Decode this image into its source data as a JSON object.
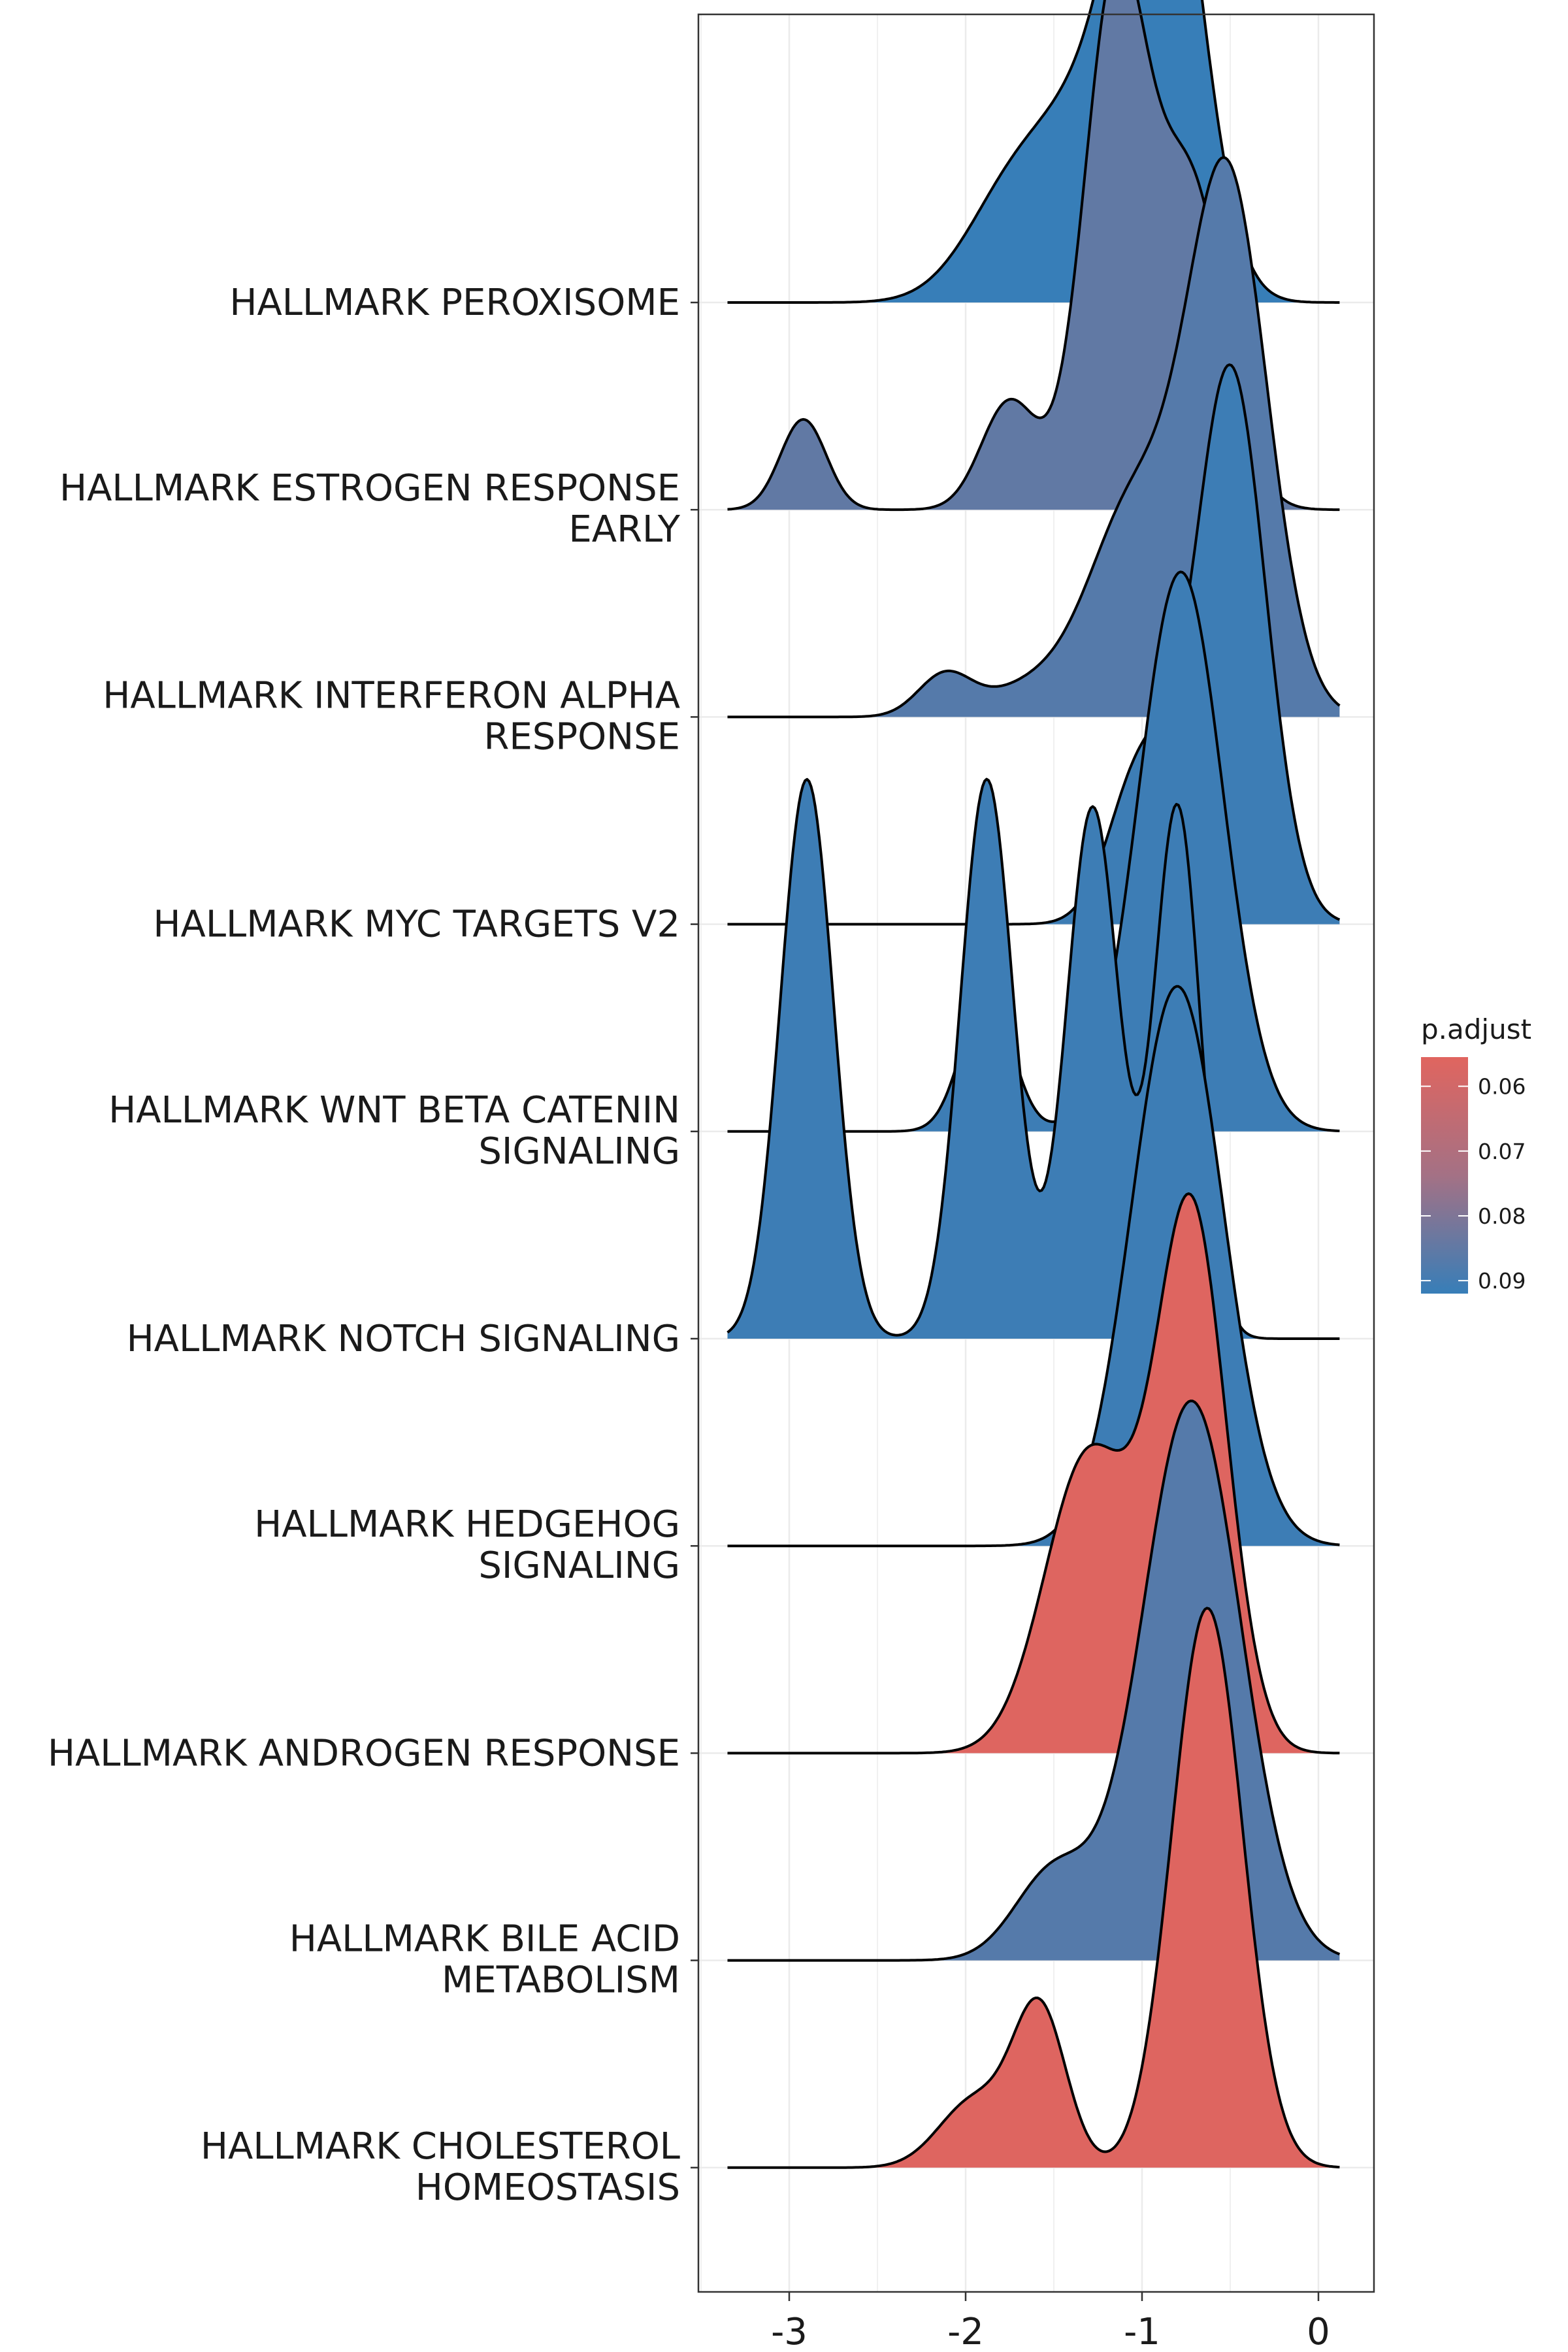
{
  "chart_data": {
    "type": "ridgeline",
    "xlim": [
      -3.5,
      0.3
    ],
    "x_ticks": [
      {
        "value": -3,
        "label": "-3"
      },
      {
        "value": -2,
        "label": "-2"
      },
      {
        "value": -1,
        "label": "-1"
      },
      {
        "value": 0,
        "label": "0"
      }
    ],
    "grid": true,
    "legend": {
      "title": "p.adjust",
      "position": "right",
      "range": [
        0.0555,
        0.092
      ],
      "ticks": [
        {
          "value": 0.06,
          "label": "0.06"
        },
        {
          "value": 0.07,
          "label": "0.07"
        },
        {
          "value": 0.08,
          "label": "0.08"
        },
        {
          "value": 0.09,
          "label": "0.09"
        }
      ],
      "colors": {
        "low": "#E0655F",
        "mid": "#A47185",
        "high": "#377EB8"
      }
    },
    "series": [
      {
        "label": "HALLMARK PEROXISOME",
        "p_adjust": 0.092,
        "components": [
          {
            "mu": -0.88,
            "sd": 0.22,
            "w": 0.62
          },
          {
            "mu": -1.2,
            "sd": 0.28,
            "w": 0.25
          },
          {
            "mu": -1.7,
            "sd": 0.28,
            "w": 0.16
          }
        ]
      },
      {
        "label": "HALLMARK ESTROGEN RESPONSE EARLY",
        "p_adjust": 0.085,
        "components": [
          {
            "mu": -1.15,
            "sd": 0.18,
            "w": 0.58
          },
          {
            "mu": -0.72,
            "sd": 0.2,
            "w": 0.35
          },
          {
            "mu": -1.75,
            "sd": 0.16,
            "w": 0.12
          },
          {
            "mu": -2.92,
            "sd": 0.13,
            "w": 0.1
          }
        ]
      },
      {
        "label": "HALLMARK INTERFERON ALPHA RESPONSE",
        "p_adjust": 0.087,
        "components": [
          {
            "mu": -0.52,
            "sd": 0.23,
            "w": 0.75
          },
          {
            "mu": -1.05,
            "sd": 0.24,
            "w": 0.27
          },
          {
            "mu": -1.55,
            "sd": 0.3,
            "w": 0.05
          },
          {
            "mu": -2.12,
            "sd": 0.15,
            "w": 0.055
          }
        ]
      },
      {
        "label": "HALLMARK MYC TARGETS V2",
        "p_adjust": 0.091,
        "components": [
          {
            "mu": -0.5,
            "sd": 0.2,
            "w": 0.78
          },
          {
            "mu": -1.0,
            "sd": 0.18,
            "w": 0.22
          }
        ]
      },
      {
        "label": "HALLMARK WNT BETA CATENIN SIGNALING",
        "p_adjust": 0.091,
        "components": [
          {
            "mu": -0.78,
            "sd": 0.24,
            "w": 1.0
          },
          {
            "mu": -1.88,
            "sd": 0.14,
            "w": 0.25
          }
        ]
      },
      {
        "label": "HALLMARK NOTCH SIGNALING",
        "p_adjust": 0.091,
        "components": [
          {
            "mu": -2.9,
            "sd": 0.15,
            "w": 1.0
          },
          {
            "mu": -1.88,
            "sd": 0.15,
            "w": 1.0
          },
          {
            "mu": -1.28,
            "sd": 0.15,
            "w": 0.95
          },
          {
            "mu": -0.8,
            "sd": 0.13,
            "w": 0.95
          }
        ]
      },
      {
        "label": "HALLMARK HEDGEHOG SIGNALING",
        "p_adjust": 0.091,
        "components": [
          {
            "mu": -0.8,
            "sd": 0.26,
            "w": 1.0
          }
        ]
      },
      {
        "label": "HALLMARK ANDROGEN RESPONSE",
        "p_adjust": 0.056,
        "components": [
          {
            "mu": -0.72,
            "sd": 0.2,
            "w": 0.72
          },
          {
            "mu": -1.3,
            "sd": 0.25,
            "w": 0.4
          }
        ]
      },
      {
        "label": "HALLMARK BILE ACID METABOLISM",
        "p_adjust": 0.087,
        "components": [
          {
            "mu": -0.72,
            "sd": 0.28,
            "w": 0.95
          },
          {
            "mu": -1.5,
            "sd": 0.22,
            "w": 0.15
          }
        ]
      },
      {
        "label": "HALLMARK CHOLESTEROL HOMEOSTASIS",
        "p_adjust": 0.056,
        "components": [
          {
            "mu": -0.63,
            "sd": 0.2,
            "w": 1.0
          },
          {
            "mu": -1.58,
            "sd": 0.15,
            "w": 0.28
          },
          {
            "mu": -1.95,
            "sd": 0.2,
            "w": 0.12
          }
        ]
      }
    ]
  }
}
